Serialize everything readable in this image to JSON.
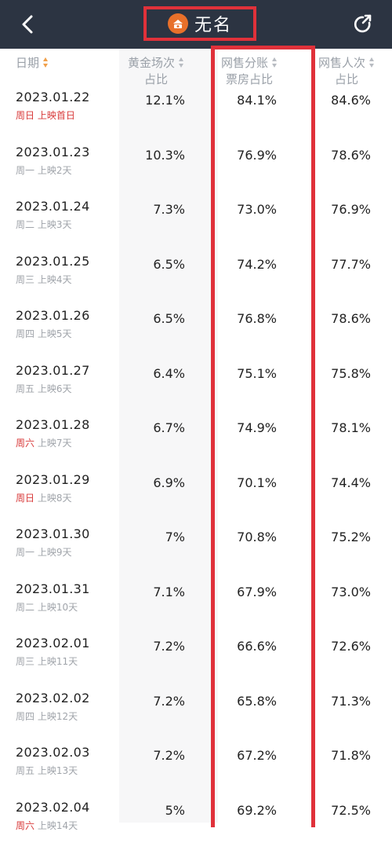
{
  "header": {
    "title": "无名",
    "back_icon": "chevron-left-icon",
    "share_icon": "share-icon",
    "avatar_icon": "film-avatar-icon",
    "accent_color": "#e0313a",
    "bar_color": "#2c3442"
  },
  "columns": {
    "date": "日期",
    "golden_line1": "黄金场次",
    "golden_line2": "占比",
    "online_line1": "网售分账",
    "online_line2": "票房占比",
    "viewers_line1": "网售人次",
    "viewers_line2": "占比"
  },
  "rows": [
    {
      "date": "2023.01.22",
      "weekday": "周日",
      "day": "上映首日",
      "golden": "12.1%",
      "online": "84.1%",
      "viewers": "84.6%"
    },
    {
      "date": "2023.01.23",
      "weekday": "周一",
      "day": "上映2天",
      "golden": "10.3%",
      "online": "76.9%",
      "viewers": "78.6%"
    },
    {
      "date": "2023.01.24",
      "weekday": "周二",
      "day": "上映3天",
      "golden": "7.3%",
      "online": "73.0%",
      "viewers": "76.9%"
    },
    {
      "date": "2023.01.25",
      "weekday": "周三",
      "day": "上映4天",
      "golden": "6.5%",
      "online": "74.2%",
      "viewers": "77.7%"
    },
    {
      "date": "2023.01.26",
      "weekday": "周四",
      "day": "上映5天",
      "golden": "6.5%",
      "online": "76.8%",
      "viewers": "78.6%"
    },
    {
      "date": "2023.01.27",
      "weekday": "周五",
      "day": "上映6天",
      "golden": "6.4%",
      "online": "75.1%",
      "viewers": "75.8%"
    },
    {
      "date": "2023.01.28",
      "weekday": "周六",
      "day": "上映7天",
      "golden": "6.7%",
      "online": "74.9%",
      "viewers": "78.1%"
    },
    {
      "date": "2023.01.29",
      "weekday": "周日",
      "day": "上映8天",
      "golden": "6.9%",
      "online": "70.1%",
      "viewers": "74.4%"
    },
    {
      "date": "2023.01.30",
      "weekday": "周一",
      "day": "上映9天",
      "golden": "7%",
      "online": "70.8%",
      "viewers": "75.2%"
    },
    {
      "date": "2023.01.31",
      "weekday": "周二",
      "day": "上映10天",
      "golden": "7.1%",
      "online": "67.9%",
      "viewers": "73.0%"
    },
    {
      "date": "2023.02.01",
      "weekday": "周三",
      "day": "上映11天",
      "golden": "7.2%",
      "online": "66.6%",
      "viewers": "72.6%"
    },
    {
      "date": "2023.02.02",
      "weekday": "周四",
      "day": "上映12天",
      "golden": "7.2%",
      "online": "65.8%",
      "viewers": "71.3%"
    },
    {
      "date": "2023.02.03",
      "weekday": "周五",
      "day": "上映13天",
      "golden": "7.2%",
      "online": "67.2%",
      "viewers": "71.8%"
    },
    {
      "date": "2023.02.04",
      "weekday": "周六",
      "day": "上映14天",
      "golden": "5%",
      "online": "69.2%",
      "viewers": "72.5%"
    }
  ]
}
